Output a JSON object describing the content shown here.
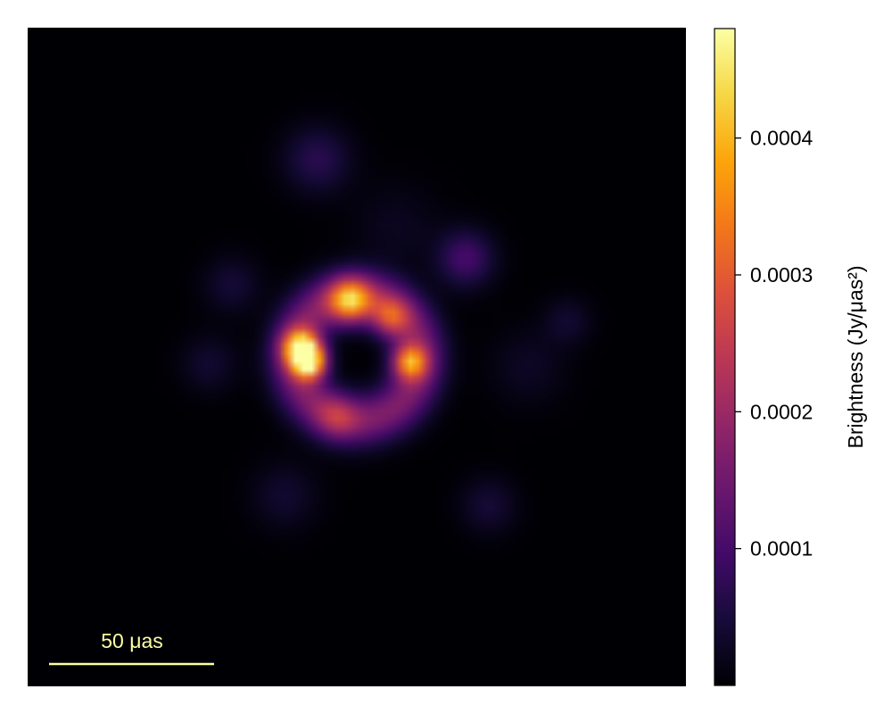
{
  "chart_data": {
    "type": "heatmap",
    "title": "",
    "colormap": "inferno",
    "background_color": "#000004",
    "image_description_for_render": "black-hole style bright ring with faint surrounding blobs",
    "scale_bar": {
      "label": "50 μas",
      "length_uas": 50,
      "color": "#FCFFA4"
    },
    "colorbar": {
      "label": "Brightness (Jy/μas²)",
      "min": 0.0,
      "max": 0.00048,
      "ticks": [
        {
          "value": 0.0001,
          "label": "0.0001"
        },
        {
          "value": 0.0002,
          "label": "0.0002"
        },
        {
          "value": 0.0003,
          "label": "0.0003"
        },
        {
          "value": 0.0004,
          "label": "0.0004"
        }
      ]
    },
    "features": [
      {
        "kind": "ring",
        "cx_uas": 0,
        "cy_uas": 0,
        "radius_uas": 19,
        "width_uas": 5.5,
        "peak": 0.00017
      },
      {
        "kind": "spot",
        "x_uas": -14.5,
        "y_uas": -1.5,
        "sigma_uas": 3.5,
        "peak": 0.0004
      },
      {
        "kind": "spot",
        "x_uas": -17,
        "y_uas": 3,
        "sigma_uas": 3.8,
        "peak": 0.00034
      },
      {
        "kind": "spot",
        "x_uas": -2,
        "y_uas": 17,
        "sigma_uas": 4.5,
        "peak": 0.0003
      },
      {
        "kind": "spot",
        "x_uas": 16,
        "y_uas": -1.5,
        "sigma_uas": 3.6,
        "peak": 0.00027
      },
      {
        "kind": "spot",
        "x_uas": 10,
        "y_uas": 12,
        "sigma_uas": 4,
        "peak": 0.00018
      },
      {
        "kind": "spot",
        "x_uas": -6,
        "y_uas": -18,
        "sigma_uas": 4.5,
        "peak": 0.0001
      },
      {
        "kind": "spot",
        "x_uas": 33,
        "y_uas": 30,
        "sigma_uas": 6,
        "peak": 0.0001
      },
      {
        "kind": "spot",
        "x_uas": -12,
        "y_uas": 60,
        "sigma_uas": 7,
        "peak": 7e-05
      },
      {
        "kind": "spot",
        "x_uas": -38,
        "y_uas": 22,
        "sigma_uas": 6,
        "peak": 4.5e-05
      },
      {
        "kind": "spot",
        "x_uas": -45,
        "y_uas": -2,
        "sigma_uas": 6,
        "peak": 4e-05
      },
      {
        "kind": "spot",
        "x_uas": -22,
        "y_uas": -42,
        "sigma_uas": 7,
        "peak": 4e-05
      },
      {
        "kind": "spot",
        "x_uas": 40,
        "y_uas": -45,
        "sigma_uas": 6,
        "peak": 4.5e-05
      },
      {
        "kind": "spot",
        "x_uas": 64,
        "y_uas": 11,
        "sigma_uas": 5,
        "peak": 4e-05
      },
      {
        "kind": "spot",
        "x_uas": 52,
        "y_uas": -3,
        "sigma_uas": 8,
        "peak": 3e-05
      },
      {
        "kind": "spot",
        "x_uas": 12,
        "y_uas": 40,
        "sigma_uas": 9,
        "peak": 2.5e-05
      }
    ],
    "field_of_view_uas": 200,
    "pixels": 80,
    "blur_uas": 2.5
  }
}
